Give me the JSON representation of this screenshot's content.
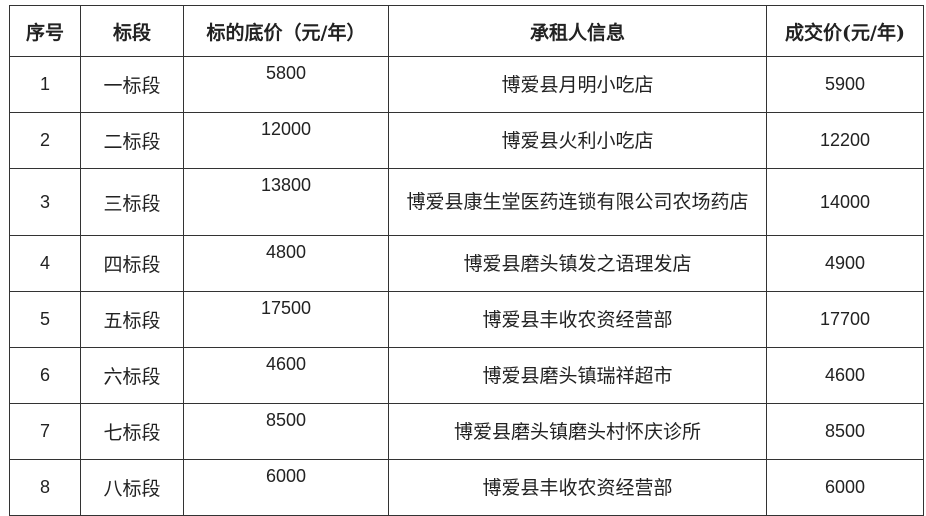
{
  "table": {
    "headers": [
      "序号",
      "标段",
      "标的底价（元/年）",
      "承租人信息",
      "成交价(元/年)"
    ],
    "rows": [
      {
        "no": "1",
        "section": "一标段",
        "base_price": "5800",
        "lessee": "博爱县月明小吃店",
        "deal_price": "5900"
      },
      {
        "no": "2",
        "section": "二标段",
        "base_price": "12000",
        "lessee": "博爱县火利小吃店",
        "deal_price": "12200"
      },
      {
        "no": "3",
        "section": "三标段",
        "base_price": "13800",
        "lessee": "博爱县康生堂医药连锁有限公司农场药店",
        "deal_price": "14000"
      },
      {
        "no": "4",
        "section": "四标段",
        "base_price": "4800",
        "lessee": "博爱县磨头镇发之语理发店",
        "deal_price": "4900"
      },
      {
        "no": "5",
        "section": "五标段",
        "base_price": "17500",
        "lessee": "博爱县丰收农资经营部",
        "deal_price": "17700"
      },
      {
        "no": "6",
        "section": "六标段",
        "base_price": "4600",
        "lessee": "博爱县磨头镇瑞祥超市",
        "deal_price": "4600"
      },
      {
        "no": "7",
        "section": "七标段",
        "base_price": "8500",
        "lessee": "博爱县磨头镇磨头村怀庆诊所",
        "deal_price": "8500"
      },
      {
        "no": "8",
        "section": "八标段",
        "base_price": "6000",
        "lessee": "博爱县丰收农资经营部",
        "deal_price": "6000"
      }
    ]
  }
}
